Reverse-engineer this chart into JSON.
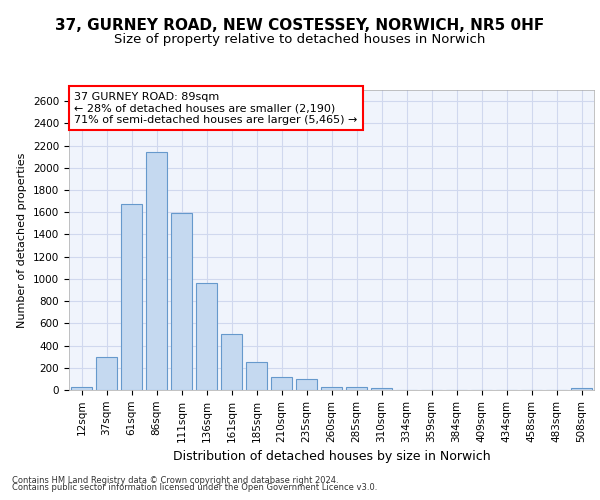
{
  "title1": "37, GURNEY ROAD, NEW COSTESSEY, NORWICH, NR5 0HF",
  "title2": "Size of property relative to detached houses in Norwich",
  "xlabel": "Distribution of detached houses by size in Norwich",
  "ylabel": "Number of detached properties",
  "categories": [
    "12sqm",
    "37sqm",
    "61sqm",
    "86sqm",
    "111sqm",
    "136sqm",
    "161sqm",
    "185sqm",
    "210sqm",
    "235sqm",
    "260sqm",
    "285sqm",
    "310sqm",
    "334sqm",
    "359sqm",
    "384sqm",
    "409sqm",
    "434sqm",
    "458sqm",
    "483sqm",
    "508sqm"
  ],
  "values": [
    25,
    300,
    1670,
    2140,
    1590,
    960,
    500,
    250,
    120,
    100,
    30,
    30,
    20,
    0,
    0,
    0,
    0,
    0,
    0,
    0,
    20
  ],
  "bar_color": "#c5d9f0",
  "bar_edge_color": "#6699cc",
  "annotation_line1": "37 GURNEY ROAD: 89sqm",
  "annotation_line2": "← 28% of detached houses are smaller (2,190)",
  "annotation_line3": "71% of semi-detached houses are larger (5,465) →",
  "ylim_max": 2700,
  "yticks": [
    0,
    200,
    400,
    600,
    800,
    1000,
    1200,
    1400,
    1600,
    1800,
    2000,
    2200,
    2400,
    2600
  ],
  "footer1": "Contains HM Land Registry data © Crown copyright and database right 2024.",
  "footer2": "Contains public sector information licensed under the Open Government Licence v3.0.",
  "background_color": "#ffffff",
  "plot_bg_color": "#f0f4fc",
  "grid_color": "#d0d8ee",
  "title1_fontsize": 11,
  "title2_fontsize": 9.5,
  "ylabel_fontsize": 8,
  "xlabel_fontsize": 9,
  "tick_fontsize": 7.5,
  "footer_fontsize": 6,
  "ann_fontsize": 8
}
